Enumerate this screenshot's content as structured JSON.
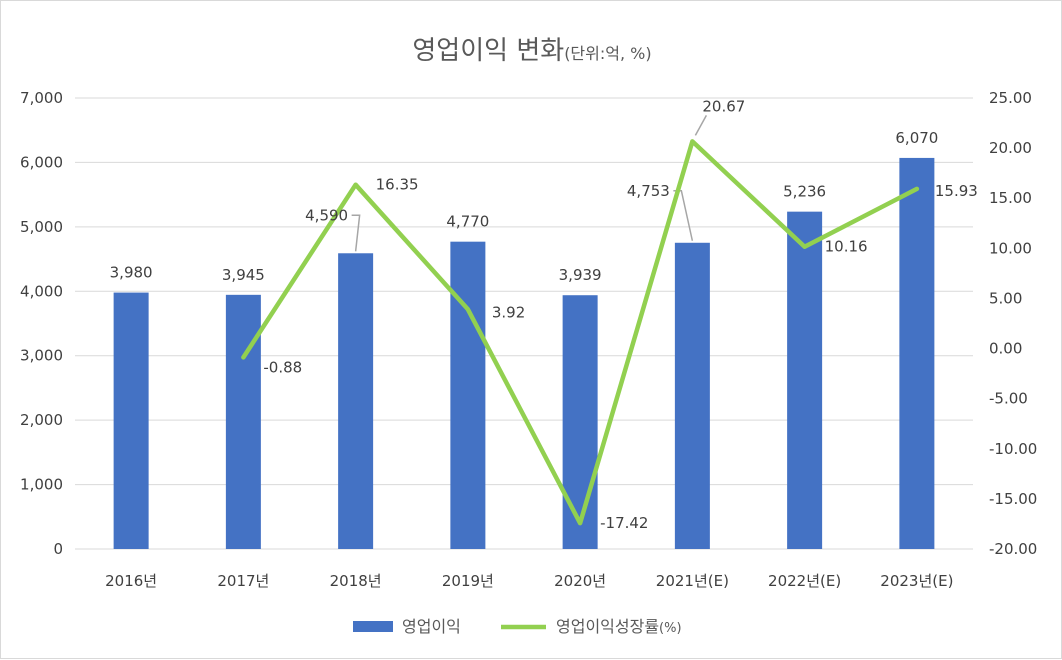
{
  "chart_data": {
    "type": "bar",
    "title": "영업이익 변화",
    "title_suffix": "(단위:억, %)",
    "categories": [
      "2016년",
      "2017년",
      "2018년",
      "2019년",
      "2020년",
      "2021년(E)",
      "2022년(E)",
      "2023년(E)"
    ],
    "series": [
      {
        "name": "영업이익",
        "type": "bar",
        "axis": "left",
        "color": "#4472C4",
        "values": [
          3980,
          3945,
          4590,
          4770,
          3939,
          4753,
          5236,
          6070
        ],
        "labels": [
          "3,980",
          "3,945",
          "4,590",
          "4,770",
          "3,939",
          "4,753",
          "5,236",
          "6,070"
        ]
      },
      {
        "name": "영업이익성장률",
        "name_suffix": "(%)",
        "type": "line",
        "axis": "right",
        "color": "#92D050",
        "values": [
          null,
          -0.88,
          16.35,
          3.92,
          -17.42,
          20.67,
          10.16,
          15.93
        ],
        "labels": [
          "",
          "-0.88",
          "16.35",
          "3.92",
          "-17.42",
          "20.67",
          "10.16",
          "15.93"
        ]
      }
    ],
    "y_left": {
      "ylim": [
        0,
        7000
      ],
      "ticks": [
        0,
        1000,
        2000,
        3000,
        4000,
        5000,
        6000,
        7000
      ],
      "tick_labels": [
        "0",
        "1,000",
        "2,000",
        "3,000",
        "4,000",
        "5,000",
        "6,000",
        "7,000"
      ]
    },
    "y_right": {
      "ylim": [
        -20,
        25
      ],
      "ticks": [
        -20,
        -15,
        -10,
        -5,
        0,
        5,
        10,
        15,
        20,
        25
      ],
      "tick_labels": [
        "-20.00",
        "-15.00",
        "-10.00",
        "-5.00",
        "0.00",
        "5.00",
        "10.00",
        "15.00",
        "20.00",
        "25.00"
      ]
    },
    "grid": true,
    "legend": "bottom"
  }
}
